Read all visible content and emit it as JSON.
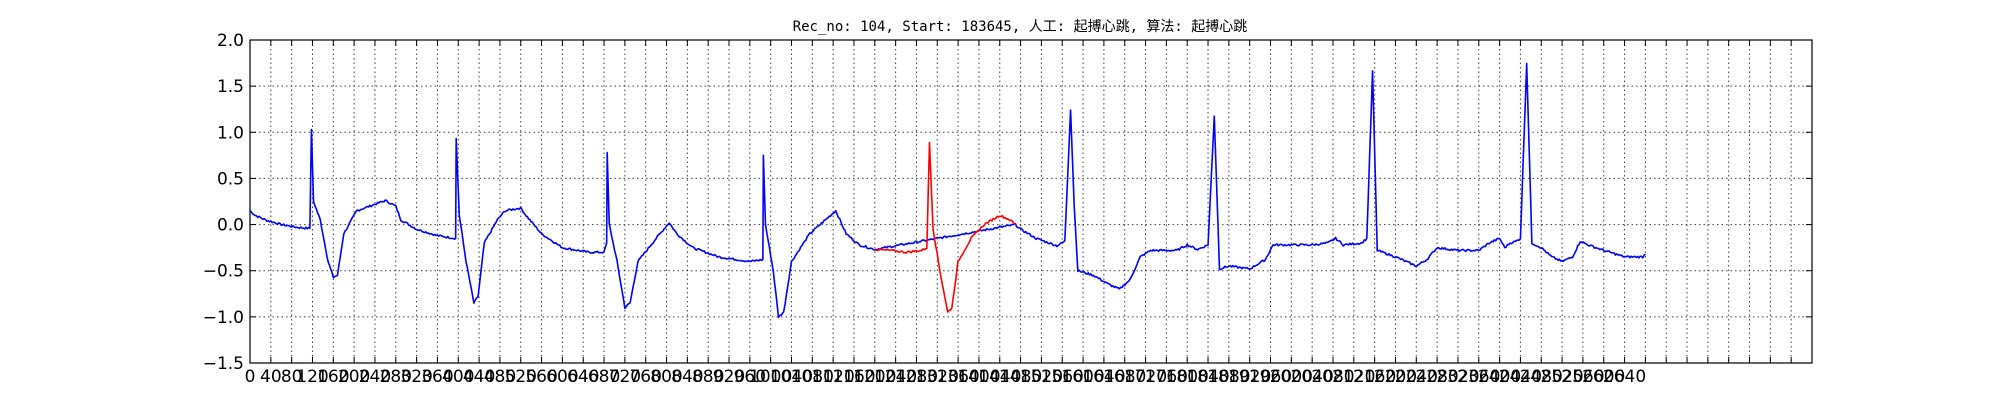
{
  "chart_data": {
    "type": "line",
    "title": "Rec_no: 104, Start: 183645, 人工: 起搏心跳, 算法: 起搏心跳",
    "xlabel": "",
    "ylabel": "",
    "xlim": [
      0,
      3000
    ],
    "ylim": [
      -1.5,
      2.0
    ],
    "yticks": [
      -1.5,
      -1.0,
      -0.5,
      0.0,
      0.5,
      1.0,
      1.5,
      2.0
    ],
    "ytick_labels": [
      "−1.5",
      "−1.0",
      "−0.5",
      "0.0",
      "0.5",
      "1.0",
      "1.5",
      "2.0"
    ],
    "xtick_step": 40,
    "xticks_shown_max": 2640,
    "grid": true,
    "colors": {
      "normal": "#0000ff",
      "highlight": "#ff0000"
    },
    "highlight_range": [
      1200,
      1470
    ],
    "series": [
      {
        "color": "#0000ff",
        "keypoints": [
          [
            0,
            0.15
          ],
          [
            10,
            0.1
          ],
          [
            30,
            0.05
          ],
          [
            60,
            0.0
          ],
          [
            90,
            -0.03
          ],
          [
            110,
            -0.04
          ],
          [
            115,
            -0.04
          ],
          [
            118,
            1.03
          ],
          [
            122,
            0.25
          ],
          [
            135,
            0.05
          ],
          [
            150,
            -0.4
          ],
          [
            160,
            -0.57
          ],
          [
            168,
            -0.55
          ],
          [
            180,
            -0.1
          ],
          [
            205,
            0.15
          ],
          [
            240,
            0.22
          ],
          [
            260,
            0.26
          ],
          [
            280,
            0.2
          ],
          [
            290,
            0.05
          ],
          [
            320,
            -0.05
          ],
          [
            360,
            -0.12
          ],
          [
            395,
            -0.15
          ],
          [
            396,
            0.93
          ],
          [
            402,
            0.1
          ],
          [
            415,
            -0.4
          ],
          [
            430,
            -0.85
          ],
          [
            438,
            -0.78
          ],
          [
            450,
            -0.2
          ],
          [
            475,
            0.05
          ],
          [
            490,
            0.15
          ],
          [
            520,
            0.18
          ],
          [
            530,
            0.1
          ],
          [
            560,
            -0.1
          ],
          [
            600,
            -0.25
          ],
          [
            650,
            -0.3
          ],
          [
            680,
            -0.3
          ],
          [
            685,
            -0.2
          ],
          [
            686,
            0.78
          ],
          [
            690,
            0.0
          ],
          [
            705,
            -0.4
          ],
          [
            720,
            -0.9
          ],
          [
            730,
            -0.85
          ],
          [
            745,
            -0.4
          ],
          [
            780,
            -0.15
          ],
          [
            805,
            0.02
          ],
          [
            820,
            -0.1
          ],
          [
            850,
            -0.25
          ],
          [
            900,
            -0.35
          ],
          [
            960,
            -0.4
          ],
          [
            985,
            -0.38
          ],
          [
            986,
            0.75
          ],
          [
            990,
            0.0
          ],
          [
            1005,
            -0.5
          ],
          [
            1015,
            -1.0
          ],
          [
            1025,
            -0.95
          ],
          [
            1040,
            -0.4
          ],
          [
            1075,
            -0.1
          ],
          [
            1105,
            0.05
          ],
          [
            1125,
            0.15
          ],
          [
            1145,
            -0.1
          ],
          [
            1170,
            -0.22
          ],
          [
            1200,
            -0.27
          ],
          [
            1470,
            0.0
          ],
          [
            1480,
            -0.05
          ],
          [
            1510,
            -0.15
          ],
          [
            1550,
            -0.23
          ],
          [
            1565,
            -0.18
          ],
          [
            1576,
            1.25
          ],
          [
            1583,
            0.2
          ],
          [
            1590,
            -0.5
          ],
          [
            1620,
            -0.55
          ],
          [
            1650,
            -0.65
          ],
          [
            1670,
            -0.7
          ],
          [
            1690,
            -0.6
          ],
          [
            1710,
            -0.35
          ],
          [
            1730,
            -0.28
          ],
          [
            1780,
            -0.28
          ],
          [
            1800,
            -0.22
          ],
          [
            1820,
            -0.27
          ],
          [
            1840,
            -0.22
          ],
          [
            1852,
            1.18
          ],
          [
            1862,
            -0.48
          ],
          [
            1880,
            -0.45
          ],
          [
            1920,
            -0.48
          ],
          [
            1950,
            -0.38
          ],
          [
            1965,
            -0.22
          ],
          [
            2000,
            -0.22
          ],
          [
            2040,
            -0.22
          ],
          [
            2070,
            -0.2
          ],
          [
            2085,
            -0.15
          ],
          [
            2100,
            -0.22
          ],
          [
            2135,
            -0.2
          ],
          [
            2145,
            -0.15
          ],
          [
            2156,
            1.66
          ],
          [
            2165,
            -0.28
          ],
          [
            2200,
            -0.35
          ],
          [
            2240,
            -0.45
          ],
          [
            2260,
            -0.38
          ],
          [
            2280,
            -0.25
          ],
          [
            2320,
            -0.28
          ],
          [
            2360,
            -0.28
          ],
          [
            2380,
            -0.2
          ],
          [
            2400,
            -0.15
          ],
          [
            2410,
            -0.25
          ],
          [
            2420,
            -0.2
          ],
          [
            2432,
            -0.18
          ],
          [
            2440,
            -0.15
          ],
          [
            2452,
            1.75
          ],
          [
            2462,
            -0.2
          ],
          [
            2480,
            -0.25
          ],
          [
            2500,
            -0.35
          ],
          [
            2520,
            -0.4
          ],
          [
            2540,
            -0.35
          ],
          [
            2555,
            -0.18
          ],
          [
            2570,
            -0.22
          ],
          [
            2600,
            -0.28
          ],
          [
            2640,
            -0.35
          ],
          [
            2675,
            -0.35
          ],
          [
            2680,
            -0.32
          ]
        ]
      },
      {
        "color": "#ff0000",
        "keypoints": [
          [
            1200,
            -0.27
          ],
          [
            1230,
            -0.28
          ],
          [
            1260,
            -0.3
          ],
          [
            1290,
            -0.28
          ],
          [
            1300,
            -0.25
          ],
          [
            1305,
            0.89
          ],
          [
            1312,
            -0.05
          ],
          [
            1325,
            -0.5
          ],
          [
            1340,
            -0.95
          ],
          [
            1348,
            -0.9
          ],
          [
            1360,
            -0.4
          ],
          [
            1385,
            -0.15
          ],
          [
            1410,
            0.0
          ],
          [
            1440,
            0.1
          ],
          [
            1460,
            0.05
          ],
          [
            1470,
            0.0
          ]
        ]
      }
    ]
  }
}
